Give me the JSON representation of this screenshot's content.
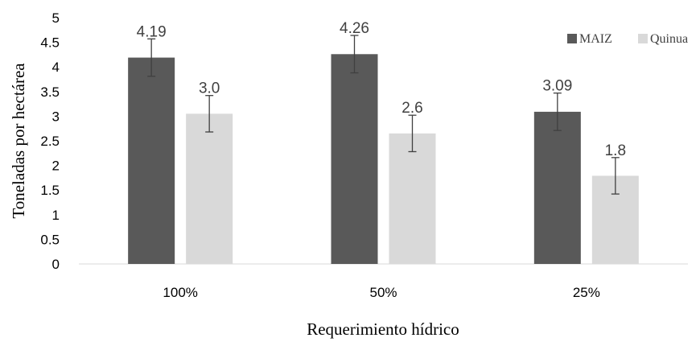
{
  "chart_data": {
    "type": "bar",
    "categories": [
      "100%",
      "50%",
      "25%"
    ],
    "series": [
      {
        "name": "MAIZ",
        "color": "#595959",
        "values": [
          4.19,
          4.26,
          3.09
        ],
        "value_labels": [
          "4.19",
          "4.26",
          "3.09"
        ],
        "error": [
          0.38,
          0.38,
          0.38
        ]
      },
      {
        "name": "Quinua",
        "color": "#d9d9d9",
        "values": [
          3.05,
          2.65,
          1.79
        ],
        "value_labels": [
          "3.0",
          "2.6",
          "1.8"
        ],
        "error": [
          0.37,
          0.37,
          0.37
        ]
      }
    ],
    "title": "",
    "xlabel": "Requerimiento hídrico",
    "ylabel": "Toneladas por hectárea",
    "ylim": [
      0,
      5
    ],
    "yticks": [
      "0",
      "0.5",
      "1",
      "1.5",
      "2",
      "2.5",
      "3",
      "3.5",
      "4",
      "4.5",
      "5"
    ],
    "grid": false,
    "legend_position": "top-right"
  }
}
